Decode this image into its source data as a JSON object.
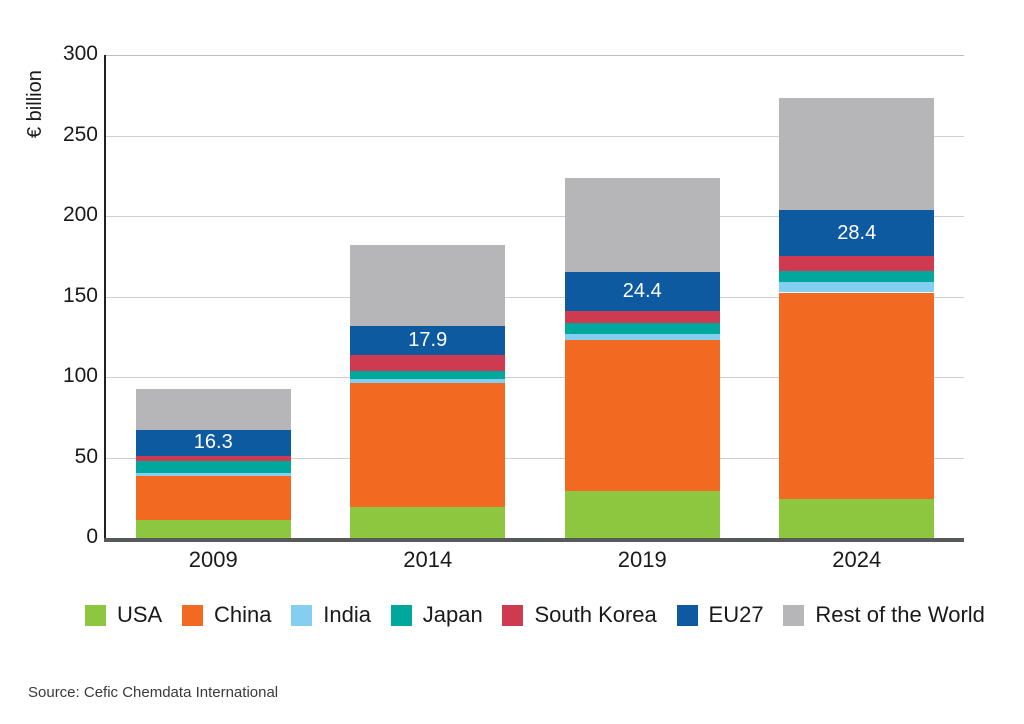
{
  "chart_data": {
    "type": "bar",
    "stacked": true,
    "categories": [
      "2009",
      "2014",
      "2019",
      "2024"
    ],
    "series": [
      {
        "name": "USA",
        "color": "#8DC63F",
        "values": [
          11.5,
          19.5,
          29.5,
          24.0
        ]
      },
      {
        "name": "China",
        "color": "#F26921",
        "values": [
          27.0,
          76.5,
          93.5,
          128.5
        ]
      },
      {
        "name": "India",
        "color": "#84CEF0",
        "values": [
          2.0,
          2.5,
          3.7,
          6.7
        ]
      },
      {
        "name": "Japan",
        "color": "#00A79D",
        "values": [
          7.5,
          5.5,
          6.7,
          6.8
        ]
      },
      {
        "name": "South Korea",
        "color": "#CE3A4F",
        "values": [
          3.1,
          9.9,
          7.4,
          9.1
        ]
      },
      {
        "name": "EU27",
        "color": "#0E5AA0",
        "values": [
          16.3,
          17.9,
          24.4,
          28.4
        ],
        "data_labels": [
          "16.3",
          "17.9",
          "24.4",
          "28.4"
        ]
      },
      {
        "name": "Rest of the World",
        "color": "#B6B6B8",
        "values": [
          25.0,
          50.5,
          58.5,
          70.0
        ]
      }
    ],
    "ylabel": "€ billion",
    "xlabel": "",
    "ylim": [
      0,
      300
    ],
    "yticks": [
      0,
      50,
      100,
      150,
      200,
      250,
      300
    ],
    "grid": true,
    "legend_position": "bottom",
    "legend": [
      "USA",
      "China",
      "India",
      "Japan",
      "South Korea",
      "EU27",
      "Rest of the World"
    ]
  },
  "source_note": "Source: Cefic Chemdata International"
}
